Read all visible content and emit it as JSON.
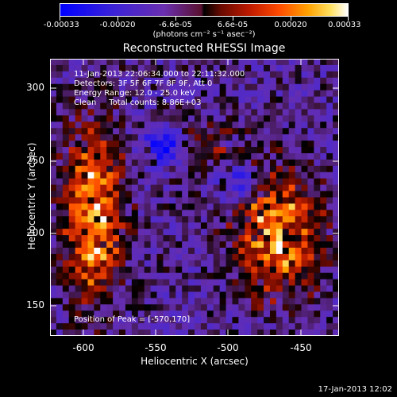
{
  "colorbar": {
    "ticks": [
      "-0.00033",
      "-0.00020",
      "-6.6e-05",
      "6.6e-05",
      "0.00020",
      "0.00033"
    ],
    "units": "(photons cm⁻² s⁻¹ asec⁻²)"
  },
  "plot": {
    "title": "Reconstructed RHESSI Image",
    "time_range": "11-Jan-2013 22:06:34.000 to 22:11:32.000",
    "detectors": "Detectors: 3F 5F 6F 7F 8F 9F, Att 0",
    "energy_range": "Energy Range: 12.0 - 25.0 keV",
    "clean_counts": "Clean     Total counts: 8.86E+03",
    "peak": "Position of Peak = [-570,170]",
    "xlabel": "Heliocentric X (arcsec)",
    "ylabel": "Heliocentric Y (arcsec)",
    "xticks": [
      "-600",
      "-550",
      "-500",
      "-450"
    ],
    "yticks": [
      "300",
      "250",
      "200",
      "150"
    ]
  },
  "timestamp": "17-Jan-2013 12:02"
}
